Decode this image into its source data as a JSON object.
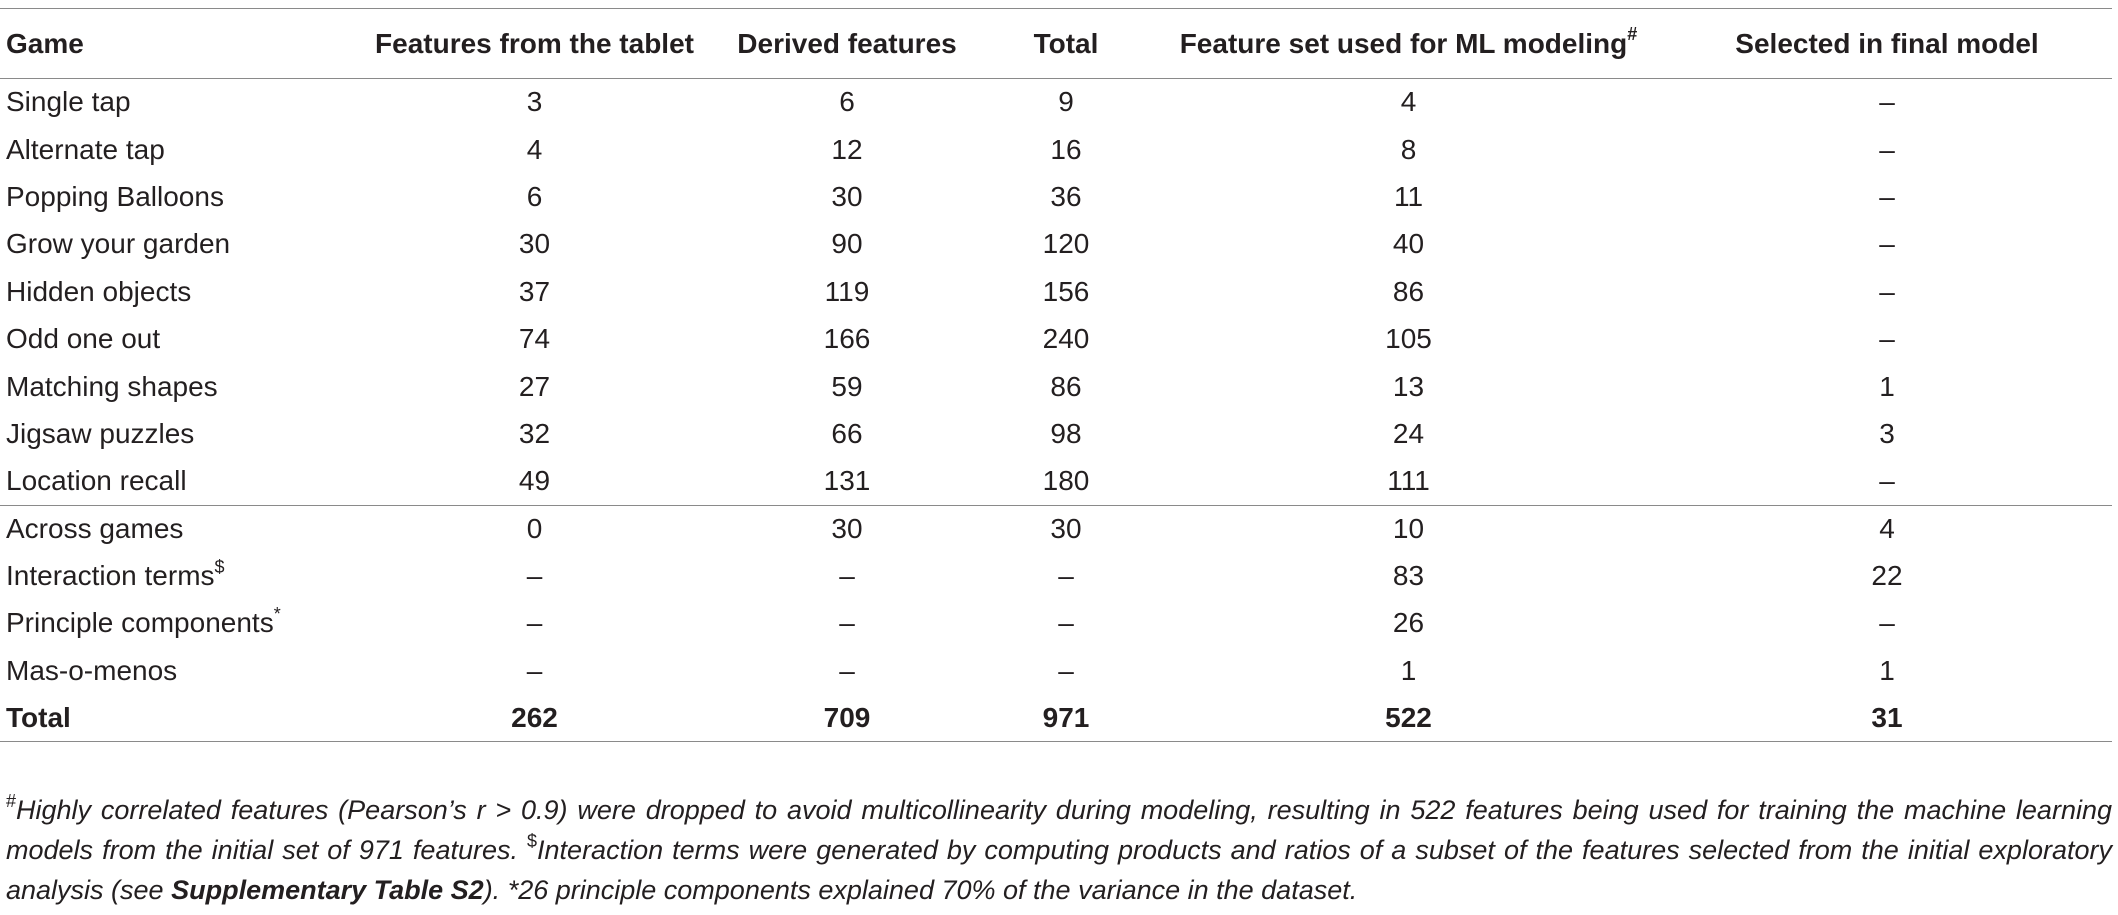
{
  "table": {
    "headers": [
      {
        "label": "Game"
      },
      {
        "label": "Features from the tablet"
      },
      {
        "label": "Derived features"
      },
      {
        "label": "Total"
      },
      {
        "label": "Feature set used for ML modeling",
        "sup": "#"
      },
      {
        "label": "Selected in final model"
      }
    ],
    "game_rows": [
      {
        "game": "Single tap",
        "tablet": "3",
        "derived": "6",
        "total": "9",
        "ml": "4",
        "final": "–"
      },
      {
        "game": "Alternate tap",
        "tablet": "4",
        "derived": "12",
        "total": "16",
        "ml": "8",
        "final": "–"
      },
      {
        "game": "Popping Balloons",
        "tablet": "6",
        "derived": "30",
        "total": "36",
        "ml": "11",
        "final": "–"
      },
      {
        "game": "Grow your garden",
        "tablet": "30",
        "derived": "90",
        "total": "120",
        "ml": "40",
        "final": "–"
      },
      {
        "game": "Hidden objects",
        "tablet": "37",
        "derived": "119",
        "total": "156",
        "ml": "86",
        "final": "–"
      },
      {
        "game": "Odd one out",
        "tablet": "74",
        "derived": "166",
        "total": "240",
        "ml": "105",
        "final": "–"
      },
      {
        "game": "Matching shapes",
        "tablet": "27",
        "derived": "59",
        "total": "86",
        "ml": "13",
        "final": "1"
      },
      {
        "game": "Jigsaw puzzles",
        "tablet": "32",
        "derived": "66",
        "total": "98",
        "ml": "24",
        "final": "3"
      },
      {
        "game": "Location recall",
        "tablet": "49",
        "derived": "131",
        "total": "180",
        "ml": "111",
        "final": "–"
      }
    ],
    "extra_rows": [
      {
        "game": "Across games",
        "sup": "",
        "tablet": "0",
        "derived": "30",
        "total": "30",
        "ml": "10",
        "final": "4"
      },
      {
        "game": "Interaction terms",
        "sup": "$",
        "tablet": "–",
        "derived": "–",
        "total": "–",
        "ml": "83",
        "final": "22"
      },
      {
        "game": "Principle components",
        "sup": "*",
        "tablet": "–",
        "derived": "–",
        "total": "–",
        "ml": "26",
        "final": "–"
      },
      {
        "game": "Mas-o-menos",
        "sup": "",
        "tablet": "–",
        "derived": "–",
        "total": "–",
        "ml": "1",
        "final": "1"
      }
    ],
    "total_row": {
      "game": "Total",
      "tablet": "262",
      "derived": "709",
      "total": "971",
      "ml": "522",
      "final": "31"
    }
  },
  "footnote": {
    "hash_sup": "#",
    "hash_text": "Highly correlated features (Pearson’s r > 0.9) were dropped to avoid multicollinearity during modeling, resulting in 522 features being used for training the machine learning models from the initial set of 971 features. ",
    "dollar_sup": "$",
    "dollar_text_before": "Interaction terms were generated by computing products and ratios of a subset of the features selected from the initial exploratory analysis (see ",
    "dollar_ref": "Supplementary Table S2",
    "dollar_text_after": "). ",
    "star_text": "*26 principle components explained 70% of the variance in the dataset."
  }
}
